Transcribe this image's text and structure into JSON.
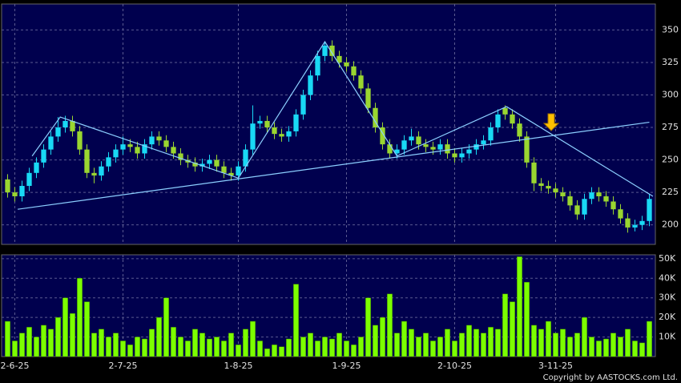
{
  "chart_data": {
    "type": "candlestick",
    "xticks": [
      {
        "value": 1,
        "label": "2-6-25"
      },
      {
        "value": 16,
        "label": "2-7-25"
      },
      {
        "value": 32,
        "label": "1-8-25"
      },
      {
        "value": 47,
        "label": "1-9-25"
      },
      {
        "value": 62,
        "label": "2-10-25"
      },
      {
        "value": 76,
        "label": "3-11-25"
      }
    ],
    "ylim": [
      185,
      370
    ],
    "yticks": [
      200,
      225,
      250,
      275,
      300,
      325,
      350
    ],
    "up_color": "#19d9f5",
    "down_color": "#9ad630",
    "volume_color": "#7cff00",
    "trendline_color": "#8ccfff",
    "grid": true,
    "open": [
      235,
      225,
      222,
      230,
      240,
      248,
      258,
      268,
      275,
      280,
      272,
      258,
      240,
      238,
      245,
      252,
      258,
      262,
      260,
      255,
      262,
      268,
      265,
      260,
      255,
      250,
      248,
      245,
      247,
      250,
      245,
      240,
      238,
      245,
      258,
      278,
      280,
      275,
      270,
      268,
      272,
      285,
      300,
      315,
      330,
      338,
      330,
      325,
      322,
      315,
      305,
      290,
      275,
      262,
      255,
      258,
      265,
      268,
      262,
      260,
      258,
      262,
      255,
      252,
      255,
      258,
      262,
      265,
      275,
      290,
      285,
      278,
      268,
      248,
      232,
      230,
      228,
      225,
      222,
      215,
      208,
      220,
      225,
      222,
      218,
      212,
      205,
      198,
      200,
      203
    ],
    "high": [
      239,
      229,
      234,
      244,
      252,
      262,
      272,
      283,
      284,
      284,
      276,
      262,
      244,
      249,
      256,
      262,
      268,
      266,
      264,
      266,
      272,
      272,
      269,
      264,
      259,
      254,
      252,
      251,
      254,
      254,
      249,
      244,
      249,
      262,
      292,
      284,
      284,
      279,
      274,
      276,
      289,
      304,
      319,
      334,
      341,
      342,
      334,
      329,
      326,
      319,
      309,
      294,
      279,
      266,
      262,
      269,
      274,
      272,
      266,
      264,
      266,
      266,
      259,
      259,
      262,
      266,
      269,
      279,
      289,
      292,
      289,
      282,
      272,
      252,
      236,
      234,
      232,
      229,
      226,
      219,
      224,
      229,
      229,
      226,
      222,
      216,
      209,
      204,
      207,
      224
    ],
    "low": [
      221,
      218,
      218,
      226,
      236,
      244,
      254,
      264,
      271,
      268,
      254,
      236,
      232,
      234,
      241,
      248,
      254,
      256,
      251,
      251,
      258,
      261,
      256,
      251,
      246,
      244,
      241,
      241,
      243,
      241,
      236,
      234,
      234,
      241,
      254,
      274,
      271,
      266,
      264,
      264,
      268,
      281,
      296,
      311,
      326,
      326,
      321,
      318,
      311,
      301,
      286,
      271,
      258,
      251,
      251,
      254,
      261,
      258,
      256,
      254,
      254,
      251,
      248,
      248,
      251,
      254,
      258,
      261,
      271,
      281,
      274,
      264,
      244,
      226,
      226,
      224,
      221,
      218,
      211,
      204,
      204,
      216,
      218,
      214,
      208,
      201,
      194,
      195,
      196,
      199
    ],
    "close": [
      225,
      222,
      230,
      240,
      248,
      258,
      268,
      275,
      280,
      272,
      258,
      240,
      238,
      245,
      252,
      258,
      262,
      260,
      255,
      262,
      268,
      265,
      260,
      255,
      250,
      248,
      245,
      247,
      250,
      245,
      240,
      238,
      245,
      258,
      278,
      280,
      275,
      270,
      268,
      272,
      285,
      300,
      315,
      330,
      338,
      330,
      325,
      322,
      315,
      305,
      290,
      275,
      262,
      255,
      258,
      265,
      268,
      262,
      260,
      258,
      262,
      255,
      252,
      255,
      258,
      262,
      265,
      275,
      285,
      285,
      278,
      268,
      248,
      232,
      230,
      228,
      225,
      222,
      215,
      208,
      220,
      225,
      222,
      218,
      212,
      205,
      198,
      200,
      203,
      220
    ],
    "volume": [
      18000,
      8000,
      12000,
      15000,
      10000,
      16000,
      14000,
      20000,
      30000,
      22000,
      40000,
      28000,
      12000,
      14000,
      10000,
      12000,
      8000,
      6000,
      10000,
      9000,
      14000,
      20000,
      30000,
      15000,
      10000,
      8000,
      14000,
      12000,
      9000,
      10000,
      8000,
      12000,
      6000,
      14000,
      18000,
      8000,
      4000,
      6000,
      5000,
      9000,
      37000,
      10000,
      12000,
      8000,
      10000,
      9000,
      12000,
      8000,
      6000,
      10000,
      30000,
      16000,
      20000,
      32000,
      12000,
      18000,
      14000,
      10000,
      12000,
      8000,
      10000,
      14000,
      8000,
      12000,
      16000,
      14000,
      12000,
      15000,
      14000,
      32000,
      28000,
      51000,
      38000,
      16000,
      14000,
      18000,
      12000,
      14000,
      10000,
      12000,
      20000,
      10000,
      8000,
      9000,
      12000,
      10000,
      14000,
      8000,
      7000,
      18000
    ],
    "volume_ylim": [
      0,
      52000
    ],
    "volume_yticks": [
      {
        "value": 10000,
        "label": "10K"
      },
      {
        "value": 20000,
        "label": "20K"
      },
      {
        "value": 30000,
        "label": "30K"
      },
      {
        "value": 40000,
        "label": "40K"
      },
      {
        "value": 50000,
        "label": "50K"
      }
    ],
    "trendlines": [
      {
        "x": [
          3.4,
          7.3,
          32,
          44,
          54,
          69.2,
          89.5
        ],
        "y": [
          253,
          283,
          236,
          341,
          253,
          291,
          222
        ]
      },
      {
        "x": [
          1.4,
          89
        ],
        "y": [
          212,
          279
        ]
      }
    ],
    "copyright": "Copyright by AASTOCKS.com Ltd."
  }
}
